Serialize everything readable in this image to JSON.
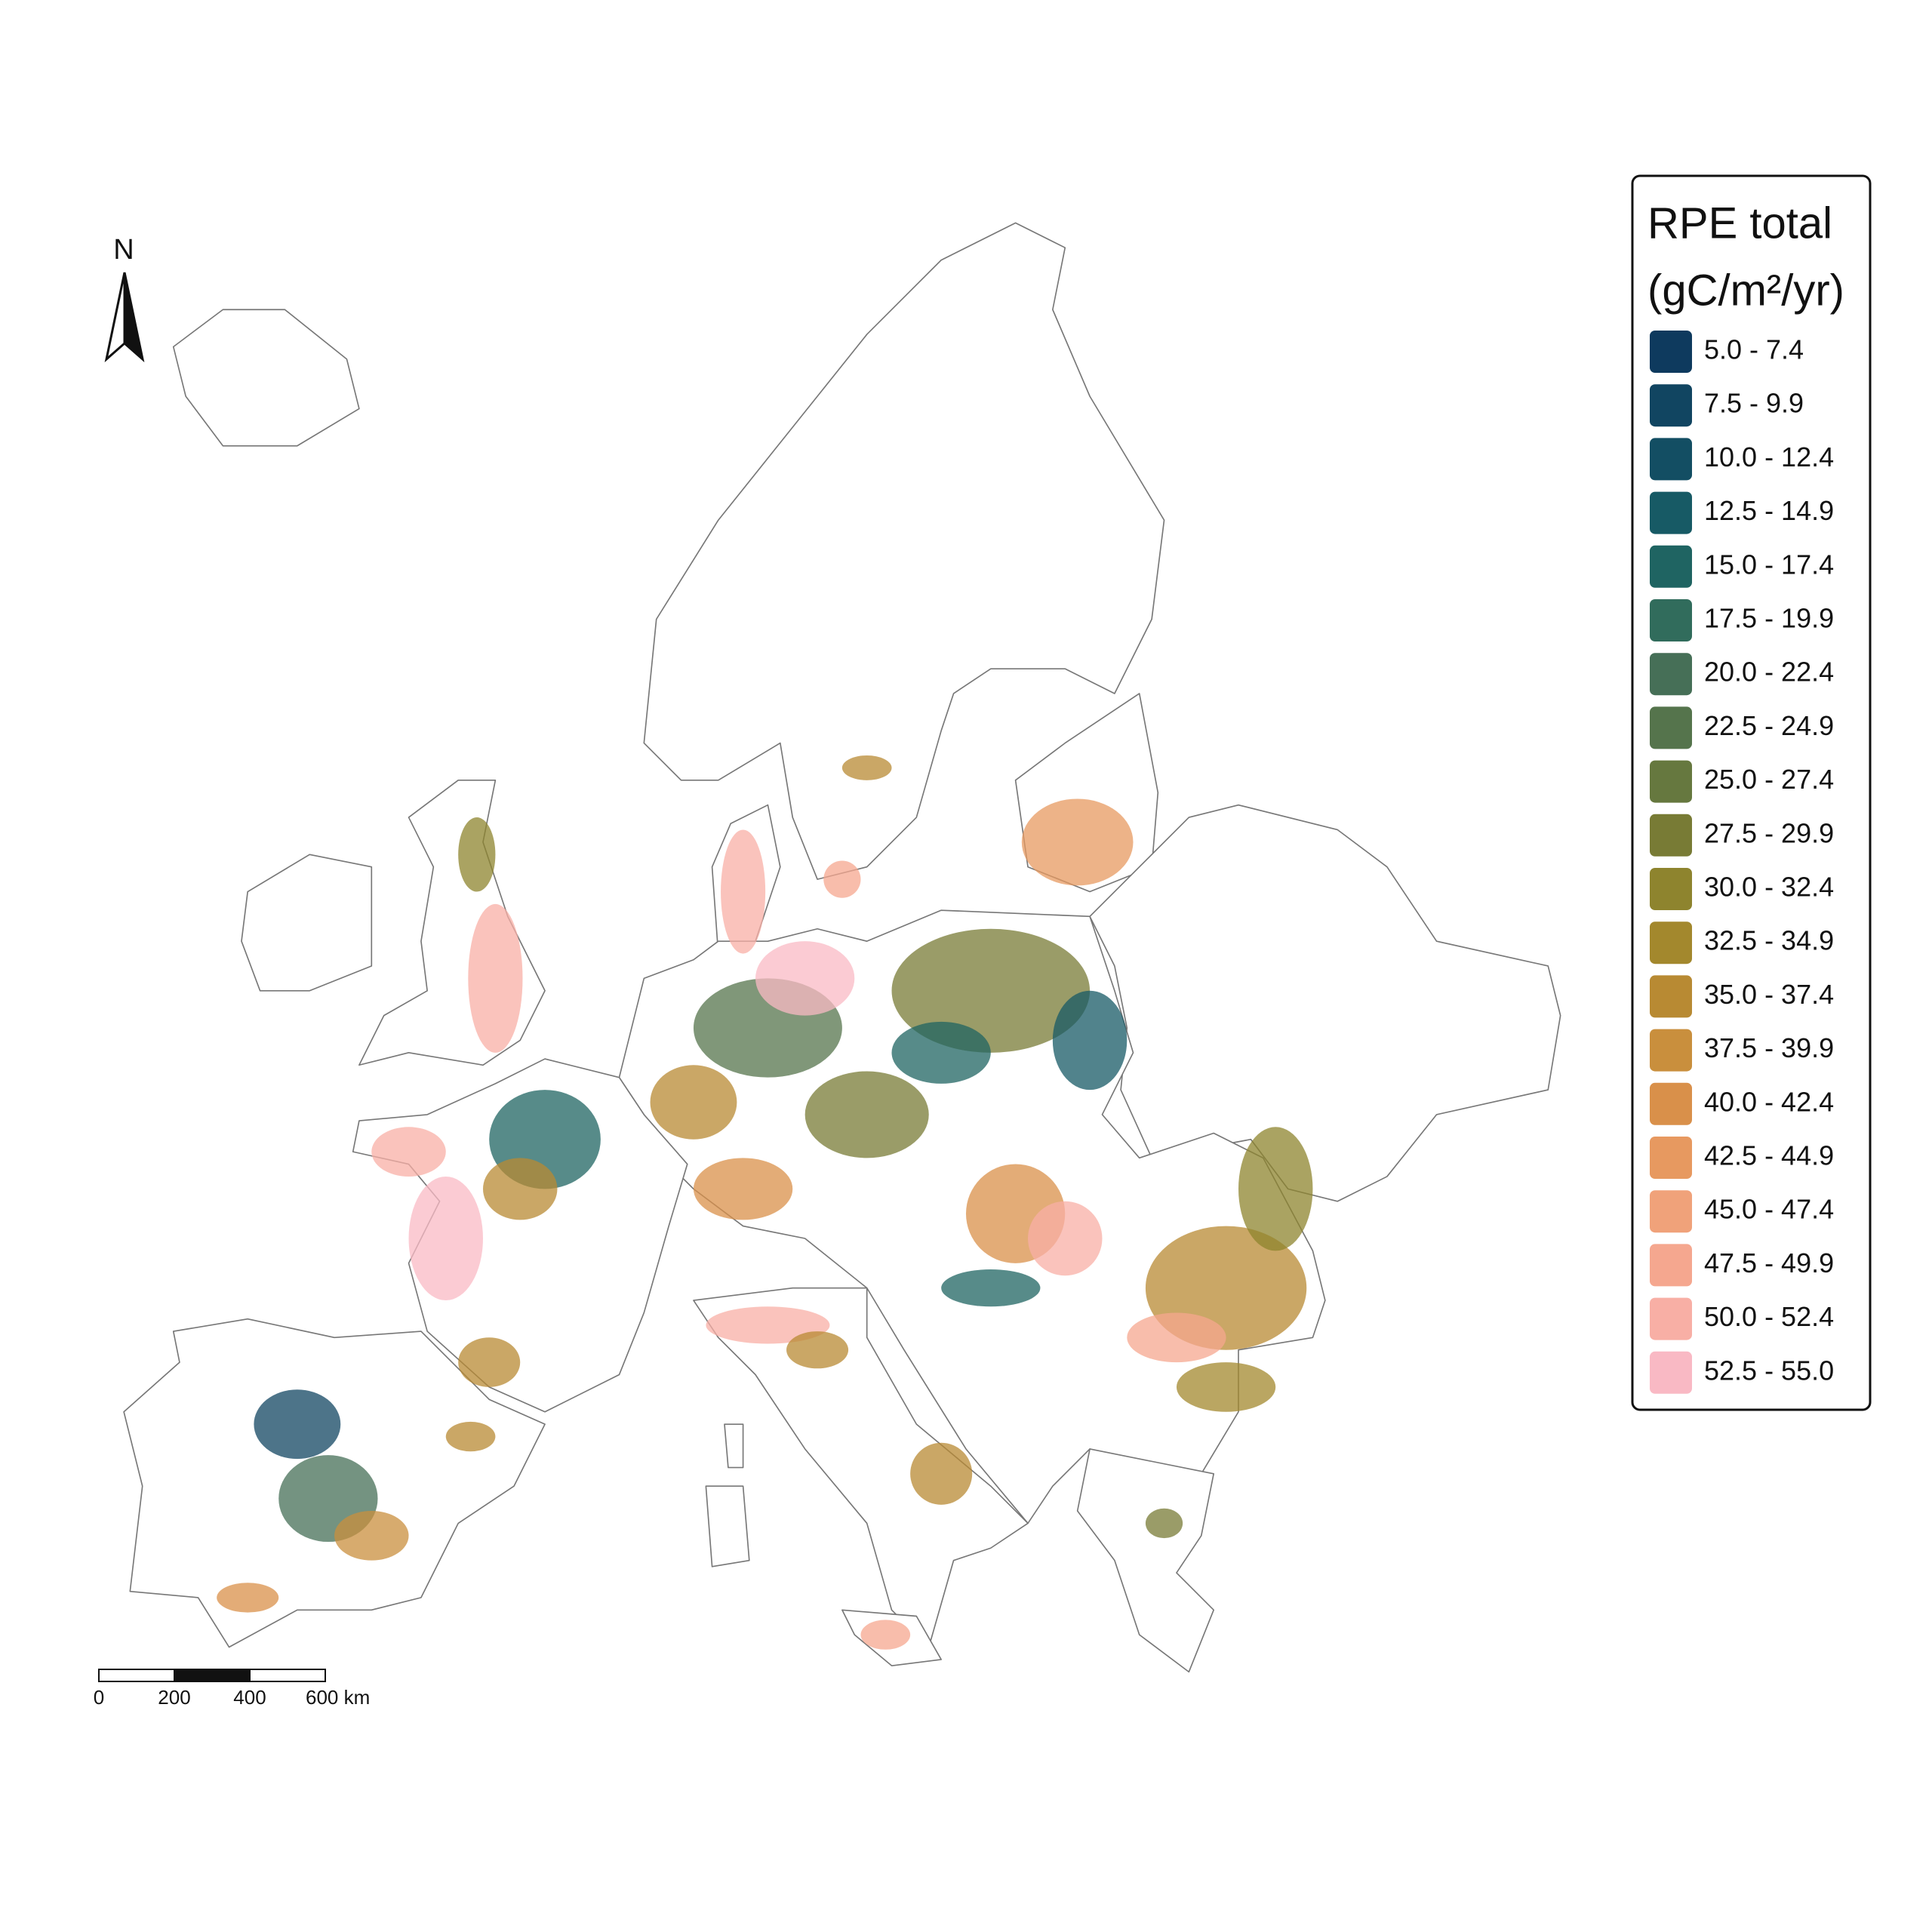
{
  "map": {
    "north_label": "N",
    "legend": {
      "title": [
        "RPE total",
        "(gC/m²/yr)"
      ],
      "items": [
        {
          "label": "5.0 - 7.4",
          "color": "#0e3a5e"
        },
        {
          "label": "7.5 - 9.9",
          "color": "#114561"
        },
        {
          "label": "10.0 - 12.4",
          "color": "#134e63"
        },
        {
          "label": "12.5 - 14.9",
          "color": "#175a65"
        },
        {
          "label": "15.0 - 17.4",
          "color": "#1f6462"
        },
        {
          "label": "17.5 - 19.9",
          "color": "#316c5c"
        },
        {
          "label": "20.0 - 22.4",
          "color": "#466f57"
        },
        {
          "label": "22.5 - 24.9",
          "color": "#55744c"
        },
        {
          "label": "25.0 - 27.4",
          "color": "#66783f"
        },
        {
          "label": "27.5 - 29.9",
          "color": "#787b35"
        },
        {
          "label": "30.0 - 32.4",
          "color": "#8e842e"
        },
        {
          "label": "32.5 - 34.9",
          "color": "#a3882d"
        },
        {
          "label": "35.0 - 37.4",
          "color": "#b88a33"
        },
        {
          "label": "37.5 - 39.9",
          "color": "#c98f3d"
        },
        {
          "label": "40.0 - 42.4",
          "color": "#d9904a"
        },
        {
          "label": "42.5 - 44.9",
          "color": "#e79960"
        },
        {
          "label": "45.0 - 47.4",
          "color": "#f0a27a"
        },
        {
          "label": "47.5 - 49.9",
          "color": "#f5a78f"
        },
        {
          "label": "50.0 - 52.4",
          "color": "#f8afa5"
        },
        {
          "label": "52.5 - 55.0",
          "color": "#f9b9c4"
        }
      ]
    },
    "scale_bar": {
      "labels": [
        "0",
        "200",
        "400",
        "600 km"
      ]
    }
  }
}
